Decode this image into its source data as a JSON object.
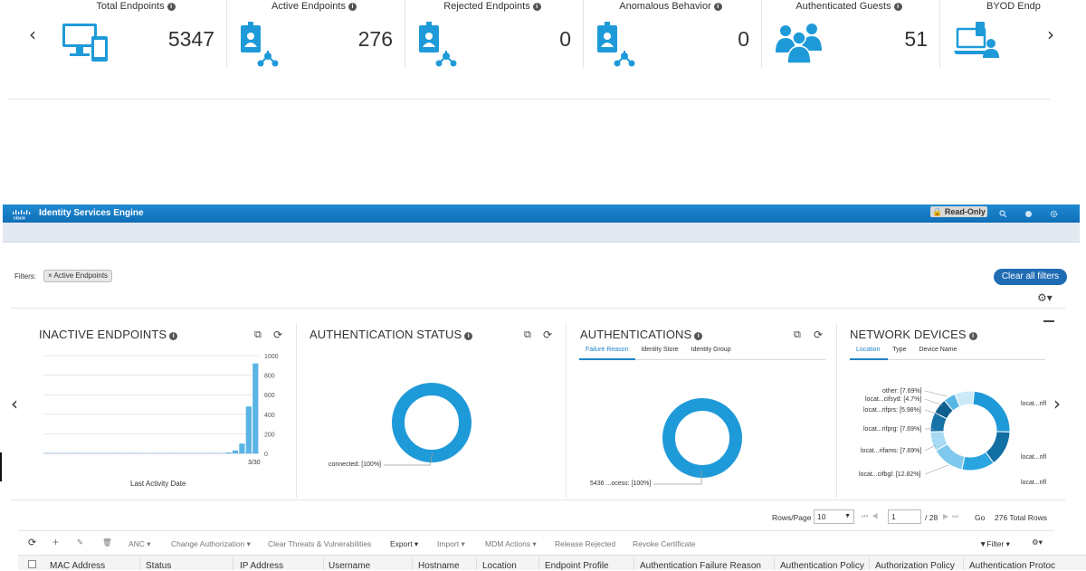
{
  "kpis": [
    {
      "title": "Total Endpoints",
      "value": "5347",
      "icon": "monitor-phone-icon"
    },
    {
      "title": "Active Endpoints",
      "value": "276",
      "icon": "badge-network-icon"
    },
    {
      "title": "Rejected Endpoints",
      "value": "0",
      "icon": "badge-network-icon"
    },
    {
      "title": "Anomalous Behavior",
      "value": "0",
      "icon": "badge-network-icon"
    },
    {
      "title": "Authenticated Guests",
      "value": "51",
      "icon": "people-icon"
    },
    {
      "title": "BYOD Endpc",
      "value": "",
      "icon": "laptop-user-icon"
    }
  ],
  "header": {
    "app_title": "Identity Services Engine",
    "logo_text": "cisco",
    "read_only": "Read-Only"
  },
  "filters": {
    "label": "Filters:",
    "chip": "× Active Endpoints",
    "clear_all": "Clear all filters"
  },
  "dashlets": {
    "inactive": {
      "title": "INACTIVE ENDPOINTS",
      "xlabel": "Last Activity Date",
      "x_tick": "3/30",
      "y_ticks": [
        "1000",
        "800",
        "600",
        "400",
        "200",
        "0"
      ]
    },
    "auth_status": {
      "title": "AUTHENTICATION STATUS",
      "label": "connected: [100%]"
    },
    "authentications": {
      "title": "AUTHENTICATIONS",
      "tabs": [
        "Failure Reason",
        "Identity Store",
        "Identity Group"
      ],
      "label": "5436 ...ocess: [100%]"
    },
    "network_devices": {
      "title": "NETWORK DEVICES",
      "tabs": [
        "Location",
        "Type",
        "Device Name"
      ],
      "left_labels": [
        "other: [7.69%]",
        "locat...cifsyd: [4.7%]",
        "locat...rifprs: [5.98%]",
        "locat...rifprg: [7.69%]",
        "locat...rifams: [7.69%]",
        "locat...cifbgl: [12.82%]"
      ],
      "right_labels": [
        "locat...rifl",
        "locat...rifl",
        "locat...rifl"
      ]
    }
  },
  "chart_data": [
    {
      "type": "bar",
      "title": "INACTIVE ENDPOINTS",
      "xlabel": "Last Activity Date",
      "ylabel": "",
      "ylim": [
        0,
        1000
      ],
      "x_ticks": [
        "3/30"
      ],
      "values": [
        1,
        1,
        1,
        1,
        1,
        1,
        1,
        1,
        1,
        1,
        1,
        1,
        1,
        1,
        1,
        1,
        1,
        1,
        1,
        1,
        1,
        1,
        1,
        1,
        1,
        1,
        3,
        5,
        30,
        100,
        480,
        920
      ]
    },
    {
      "type": "pie",
      "title": "AUTHENTICATION STATUS",
      "slices": [
        {
          "label": "connected",
          "value": 100
        }
      ]
    },
    {
      "type": "pie",
      "title": "AUTHENTICATIONS",
      "slices": [
        {
          "label": "5436 ...ocess",
          "value": 100
        }
      ]
    },
    {
      "type": "pie",
      "title": "NETWORK DEVICES",
      "slices": [
        {
          "label": "locat...rifl",
          "value": 23.1,
          "color": "#1f9ad9"
        },
        {
          "label": "locat...rifl",
          "value": 14.0,
          "color": "#116fa3"
        },
        {
          "label": "locat...rifl",
          "value": 12.9,
          "color": "#2aa5e0"
        },
        {
          "label": "locat...cifbgl",
          "value": 12.82,
          "color": "#7fc9ee"
        },
        {
          "label": "locat...rifams",
          "value": 7.69,
          "color": "#a8daf3"
        },
        {
          "label": "locat...rifprg",
          "value": 7.69,
          "color": "#1573a8"
        },
        {
          "label": "locat...rifprs",
          "value": 5.98,
          "color": "#0d5f8e"
        },
        {
          "label": "locat...cifsyd",
          "value": 4.7,
          "color": "#58b6e6"
        },
        {
          "label": "other",
          "value": 7.69,
          "color": "#cce9f8"
        }
      ]
    }
  ],
  "pagination": {
    "rows_label": "Rows/Page",
    "rows_value": "10",
    "page_value": "1",
    "page_total": "/ 28",
    "go": "Go",
    "total": "276 Total Rows"
  },
  "toolbar": {
    "anc": "ANC ▾",
    "change_auth": "Change Authorization ▾",
    "clear_threats": "Clear Threats & Vulnerabilities",
    "export": "Export ▾",
    "import": "Import ▾",
    "mdm": "MDM Actions ▾",
    "release": "Release Rejected",
    "revoke": "Revoke Certificate",
    "filter": "Filter ▾"
  },
  "table": {
    "columns": [
      "MAC Address",
      "Status",
      "IP Address",
      "Username",
      "Hostname",
      "Location",
      "Endpoint Profile",
      "Authentication Failure Reason",
      "Authentication Policy",
      "Authorization Policy",
      "Authentication Protoc"
    ]
  },
  "colors": {
    "accent": "#1f9ad9",
    "header": "#1478c2"
  }
}
